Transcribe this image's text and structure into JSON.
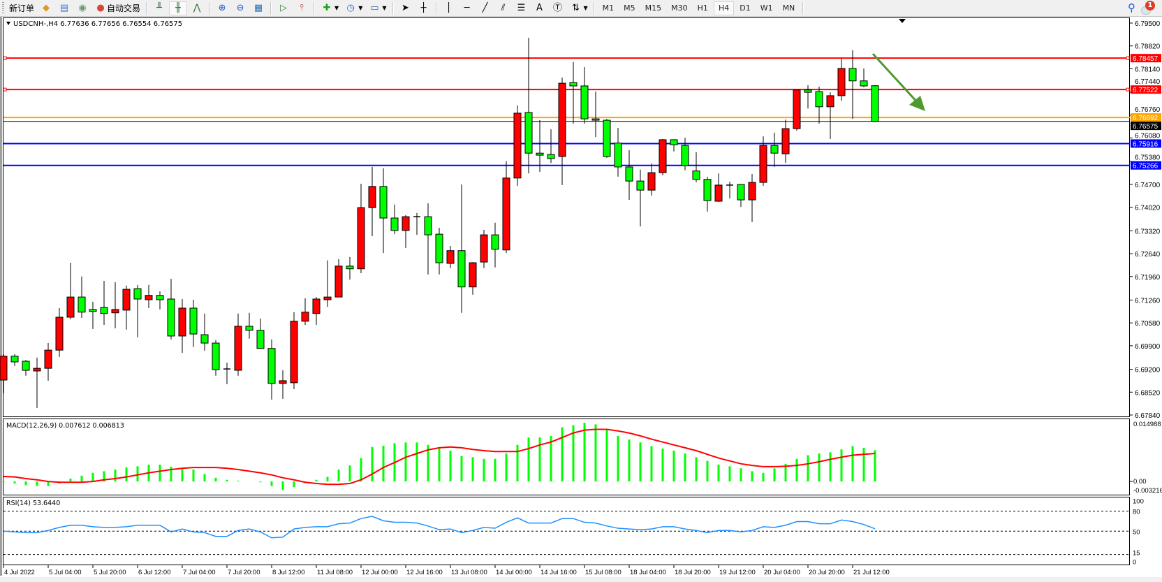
{
  "toolbar": {
    "new_order": "新订单",
    "auto_trading": "自动交易",
    "timeframes": [
      "M1",
      "M5",
      "M15",
      "M30",
      "H1",
      "H4",
      "D1",
      "W1",
      "MN"
    ],
    "active_timeframe": "H4",
    "notification_count": "1",
    "text_tool": "A"
  },
  "chart": {
    "header": "USDCNH-,H4  6.77636 6.77656 6.76554 6.76575",
    "price_axis_ticks": [
      "6.79500",
      "6.78820",
      "6.78140",
      "6.77440",
      "6.76760",
      "6.76080",
      "6.75380",
      "6.74700",
      "6.74020",
      "6.73320",
      "6.72640",
      "6.71960",
      "6.71260",
      "6.70580",
      "6.69900",
      "6.69200",
      "6.68520",
      "6.67840"
    ],
    "price_range": [
      6.6784,
      6.795
    ],
    "hlines": [
      {
        "price": "6.78457",
        "color": "#ff0000"
      },
      {
        "price": "6.77522",
        "color": "#ff0000"
      },
      {
        "price": "6.76692",
        "color": "#ffa500"
      },
      {
        "price": "6.75916",
        "color": "#0000ff"
      },
      {
        "price": "6.75266",
        "color": "#0000ff"
      }
    ],
    "bid_line": {
      "price": "6.76575",
      "color": "#000000"
    },
    "up_color": "#ff0000",
    "down_color": "#00ff00",
    "arrow_color": "#4e9a2e",
    "time_labels": [
      "4 Jul 2022",
      "5 Jul 04:00",
      "5 Jul 20:00",
      "6 Jul 12:00",
      "7 Jul 04:00",
      "7 Jul 20:00",
      "8 Jul 12:00",
      "11 Jul 08:00",
      "12 Jul 00:00",
      "12 Jul 16:00",
      "13 Jul 08:00",
      "14 Jul 00:00",
      "14 Jul 16:00",
      "15 Jul 08:00",
      "18 Jul 04:00",
      "18 Jul 20:00",
      "19 Jul 12:00",
      "20 Jul 04:00",
      "20 Jul 20:00",
      "21 Jul 12:00"
    ],
    "candles_ohlc": [
      [
        6.6888,
        6.6965,
        6.6849,
        6.6959
      ],
      [
        6.6959,
        6.6965,
        6.693,
        6.6942
      ],
      [
        6.6944,
        6.6948,
        6.6901,
        6.6917
      ],
      [
        6.6915,
        6.6955,
        6.6805,
        6.6923
      ],
      [
        6.6923,
        6.6998,
        6.6886,
        6.6977
      ],
      [
        6.6977,
        6.7102,
        6.6957,
        6.7075
      ],
      [
        6.7075,
        6.7237,
        6.7069,
        6.7135
      ],
      [
        6.7135,
        6.7196,
        6.7073,
        6.709
      ],
      [
        6.7098,
        6.7121,
        6.704,
        6.7092
      ],
      [
        6.7104,
        6.7183,
        6.7052,
        6.7086
      ],
      [
        6.7088,
        6.7179,
        6.7042,
        6.7098
      ],
      [
        6.7096,
        6.7169,
        6.7038,
        6.7158
      ],
      [
        6.716,
        6.7171,
        6.7015,
        6.7129
      ],
      [
        6.7127,
        6.7171,
        6.7102,
        6.714
      ],
      [
        6.714,
        6.7152,
        6.7098,
        6.7127
      ],
      [
        6.7129,
        6.7189,
        6.7009,
        6.7019
      ],
      [
        6.7019,
        6.7129,
        6.6969,
        6.7102
      ],
      [
        6.7102,
        6.7127,
        6.6986,
        6.7025
      ],
      [
        6.7023,
        6.7086,
        6.6975,
        6.6998
      ],
      [
        6.6998,
        6.7007,
        6.6901,
        6.6919
      ],
      [
        6.6921,
        6.694,
        6.6876,
        6.6921
      ],
      [
        6.6917,
        6.7086,
        6.6901,
        6.7048
      ],
      [
        6.7048,
        6.7088,
        6.7011,
        6.7036
      ],
      [
        6.7036,
        6.7071,
        6.6982,
        6.6982
      ],
      [
        6.6982,
        6.7009,
        6.683,
        6.6878
      ],
      [
        6.6878,
        6.6917,
        6.6832,
        6.6886
      ],
      [
        6.688,
        6.709,
        6.6861,
        6.7063
      ],
      [
        6.7063,
        6.7131,
        6.7052,
        6.709
      ],
      [
        6.7086,
        6.7135,
        6.7052,
        6.7129
      ],
      [
        6.7127,
        6.7244,
        6.7106,
        6.7135
      ],
      [
        6.7135,
        6.7248,
        6.7135,
        6.7227
      ],
      [
        6.7227,
        6.7254,
        6.7187,
        6.7219
      ],
      [
        6.7219,
        6.7472,
        6.7206,
        6.7401
      ],
      [
        6.7401,
        6.7522,
        6.7316,
        6.7464
      ],
      [
        6.7464,
        6.7518,
        6.7266,
        6.737
      ],
      [
        6.737,
        6.741,
        6.7322,
        6.7333
      ],
      [
        6.7333,
        6.7379,
        6.7281,
        6.7374
      ],
      [
        6.7374,
        6.7385,
        6.732,
        6.7374
      ],
      [
        6.7374,
        6.7414,
        6.7202,
        6.732
      ],
      [
        6.7322,
        6.7341,
        6.7202,
        6.7237
      ],
      [
        6.7235,
        6.7287,
        6.7221,
        6.7273
      ],
      [
        6.7273,
        6.747,
        6.7088,
        6.7165
      ],
      [
        6.7165,
        6.7239,
        6.7142,
        6.7237
      ],
      [
        6.7239,
        6.7335,
        6.7221,
        6.732
      ],
      [
        6.732,
        6.7356,
        6.7223,
        6.7277
      ],
      [
        6.7275,
        6.7539,
        6.7266,
        6.7489
      ],
      [
        6.7489,
        6.7705,
        6.7466,
        6.7682
      ],
      [
        6.7684,
        6.7906,
        6.7503,
        6.7563
      ],
      [
        6.7563,
        6.7661,
        6.7507,
        6.7557
      ],
      [
        6.7559,
        6.7634,
        6.7534,
        6.7547
      ],
      [
        6.7553,
        6.7788,
        6.7468,
        6.7771
      ],
      [
        6.7773,
        6.7834,
        6.7651,
        6.7763
      ],
      [
        6.7763,
        6.7819,
        6.7651,
        6.7665
      ],
      [
        6.7665,
        6.7746,
        6.7611,
        6.7661
      ],
      [
        6.7661,
        6.7665,
        6.7549,
        6.7553
      ],
      [
        6.7593,
        6.7638,
        6.7493,
        6.7522
      ],
      [
        6.7522,
        6.7572,
        6.7424,
        6.748
      ],
      [
        6.748,
        6.7514,
        6.7345,
        6.7453
      ],
      [
        6.7453,
        6.7532,
        6.7437,
        6.7505
      ],
      [
        6.7505,
        6.7605,
        6.7497,
        6.7603
      ],
      [
        6.7603,
        6.7603,
        6.7568,
        6.7588
      ],
      [
        6.7586,
        6.7609,
        6.7512,
        6.7526
      ],
      [
        6.751,
        6.7566,
        6.7476,
        6.7485
      ],
      [
        6.7485,
        6.7493,
        6.7389,
        6.7422
      ],
      [
        6.742,
        6.7503,
        6.7418,
        6.7468
      ],
      [
        6.7468,
        6.7478,
        6.7428,
        6.7468
      ],
      [
        6.747,
        6.747,
        6.7403,
        6.7424
      ],
      [
        6.7424,
        6.7501,
        6.7358,
        6.7476
      ],
      [
        6.7476,
        6.7613,
        6.7466,
        6.7586
      ],
      [
        6.7586,
        6.7624,
        6.7522,
        6.7563
      ],
      [
        6.7561,
        6.7663,
        6.7534,
        6.7636
      ],
      [
        6.7636,
        6.7751,
        6.763,
        6.7751
      ],
      [
        6.7751,
        6.7765,
        6.7696,
        6.7744
      ],
      [
        6.7746,
        6.7761,
        6.7651,
        6.7701
      ],
      [
        6.7701,
        6.7744,
        6.7605,
        6.7734
      ],
      [
        6.7734,
        6.7844,
        6.7719,
        6.7815
      ],
      [
        6.7815,
        6.7869,
        6.7665,
        6.7778
      ],
      [
        6.7778,
        6.7815,
        6.7759,
        6.7763
      ],
      [
        6.77636,
        6.77656,
        6.76554,
        6.76575
      ]
    ]
  },
  "macd": {
    "label": "MACD(12,26,9) 0.007612 0.006813",
    "axis_labels": [
      "0.014988",
      "0.00",
      "-0.003216"
    ],
    "range": [
      -0.003216,
      0.014988
    ],
    "hist_color": "#00ff00",
    "signal_color": "#ff0000",
    "histogram": [
      -0.0002,
      -0.0005,
      -0.0009,
      -0.0011,
      -0.0011,
      -0.0005,
      0.0007,
      0.0014,
      0.0021,
      0.0025,
      0.0029,
      0.0034,
      0.0037,
      0.0041,
      0.0041,
      0.0036,
      0.0032,
      0.0029,
      0.0018,
      0.0009,
      0.0004,
      0.0002,
      0.0,
      -0.0002,
      -0.0011,
      -0.0021,
      -0.0014,
      -0.0004,
      0.0004,
      0.0011,
      0.0029,
      0.0039,
      0.0057,
      0.0084,
      0.0087,
      0.0093,
      0.0095,
      0.0095,
      0.0089,
      0.008,
      0.0075,
      0.0062,
      0.0059,
      0.0055,
      0.0055,
      0.0068,
      0.0089,
      0.0107,
      0.0107,
      0.0111,
      0.0132,
      0.0137,
      0.0143,
      0.0139,
      0.0125,
      0.0111,
      0.0102,
      0.0095,
      0.0086,
      0.008,
      0.0075,
      0.0068,
      0.0059,
      0.005,
      0.0041,
      0.0037,
      0.0032,
      0.0025,
      0.0021,
      0.0032,
      0.0043,
      0.0055,
      0.0064,
      0.0068,
      0.0071,
      0.0078,
      0.0086,
      0.0082,
      0.007612
    ],
    "signal": [
      0.0012,
      0.0011,
      0.0007,
      0.0004,
      0.0,
      -0.0002,
      -0.0002,
      -0.0002,
      0.0,
      0.0004,
      0.0007,
      0.0011,
      0.0016,
      0.0021,
      0.0025,
      0.0029,
      0.0032,
      0.0034,
      0.0034,
      0.0034,
      0.0032,
      0.0029,
      0.0025,
      0.0021,
      0.0016,
      0.0009,
      0.0004,
      -0.0002,
      -0.0005,
      -0.0007,
      -0.0007,
      -0.0005,
      0.0004,
      0.0018,
      0.0034,
      0.0046,
      0.0059,
      0.0068,
      0.0077,
      0.0082,
      0.0084,
      0.0082,
      0.0078,
      0.0075,
      0.0073,
      0.0073,
      0.0073,
      0.008,
      0.0089,
      0.0096,
      0.0107,
      0.0118,
      0.0125,
      0.0127,
      0.0127,
      0.0123,
      0.0118,
      0.0111,
      0.0103,
      0.0096,
      0.0089,
      0.0082,
      0.0075,
      0.0066,
      0.0057,
      0.005,
      0.0043,
      0.0039,
      0.0036,
      0.0036,
      0.0037,
      0.0039,
      0.0043,
      0.0048,
      0.0054,
      0.0059,
      0.0064,
      0.0066,
      0.006813
    ]
  },
  "rsi": {
    "label": "RSI(14) 53.6440",
    "axis_labels": [
      "100",
      "80",
      "50",
      "15",
      "0"
    ],
    "levels": [
      80,
      50,
      15
    ],
    "color": "#1e90ff",
    "values": [
      50,
      48.9,
      47.8,
      47.8,
      51.1,
      55.6,
      58.9,
      58.9,
      56.7,
      55.6,
      55.6,
      56.7,
      58.9,
      58.9,
      58.9,
      48.9,
      53.3,
      48.9,
      47.8,
      42.2,
      42.2,
      51.1,
      53.3,
      48.9,
      40,
      41.1,
      53.3,
      55.6,
      56.7,
      56.7,
      61.1,
      62.2,
      68.9,
      72.2,
      65.6,
      63.3,
      63.3,
      62.2,
      57.8,
      52.2,
      53.3,
      47.8,
      51.1,
      55.6,
      54.4,
      63.3,
      70,
      62.2,
      62.2,
      62.2,
      68.9,
      68.9,
      63.3,
      62.2,
      57.8,
      54.4,
      53.3,
      52.2,
      53.3,
      56.7,
      56.7,
      53.3,
      51.1,
      47.8,
      51.1,
      51.1,
      48.9,
      51.1,
      56.7,
      55.6,
      58.9,
      64.4,
      64.4,
      61.1,
      61.1,
      66.7,
      64.4,
      60,
      53.644
    ]
  }
}
